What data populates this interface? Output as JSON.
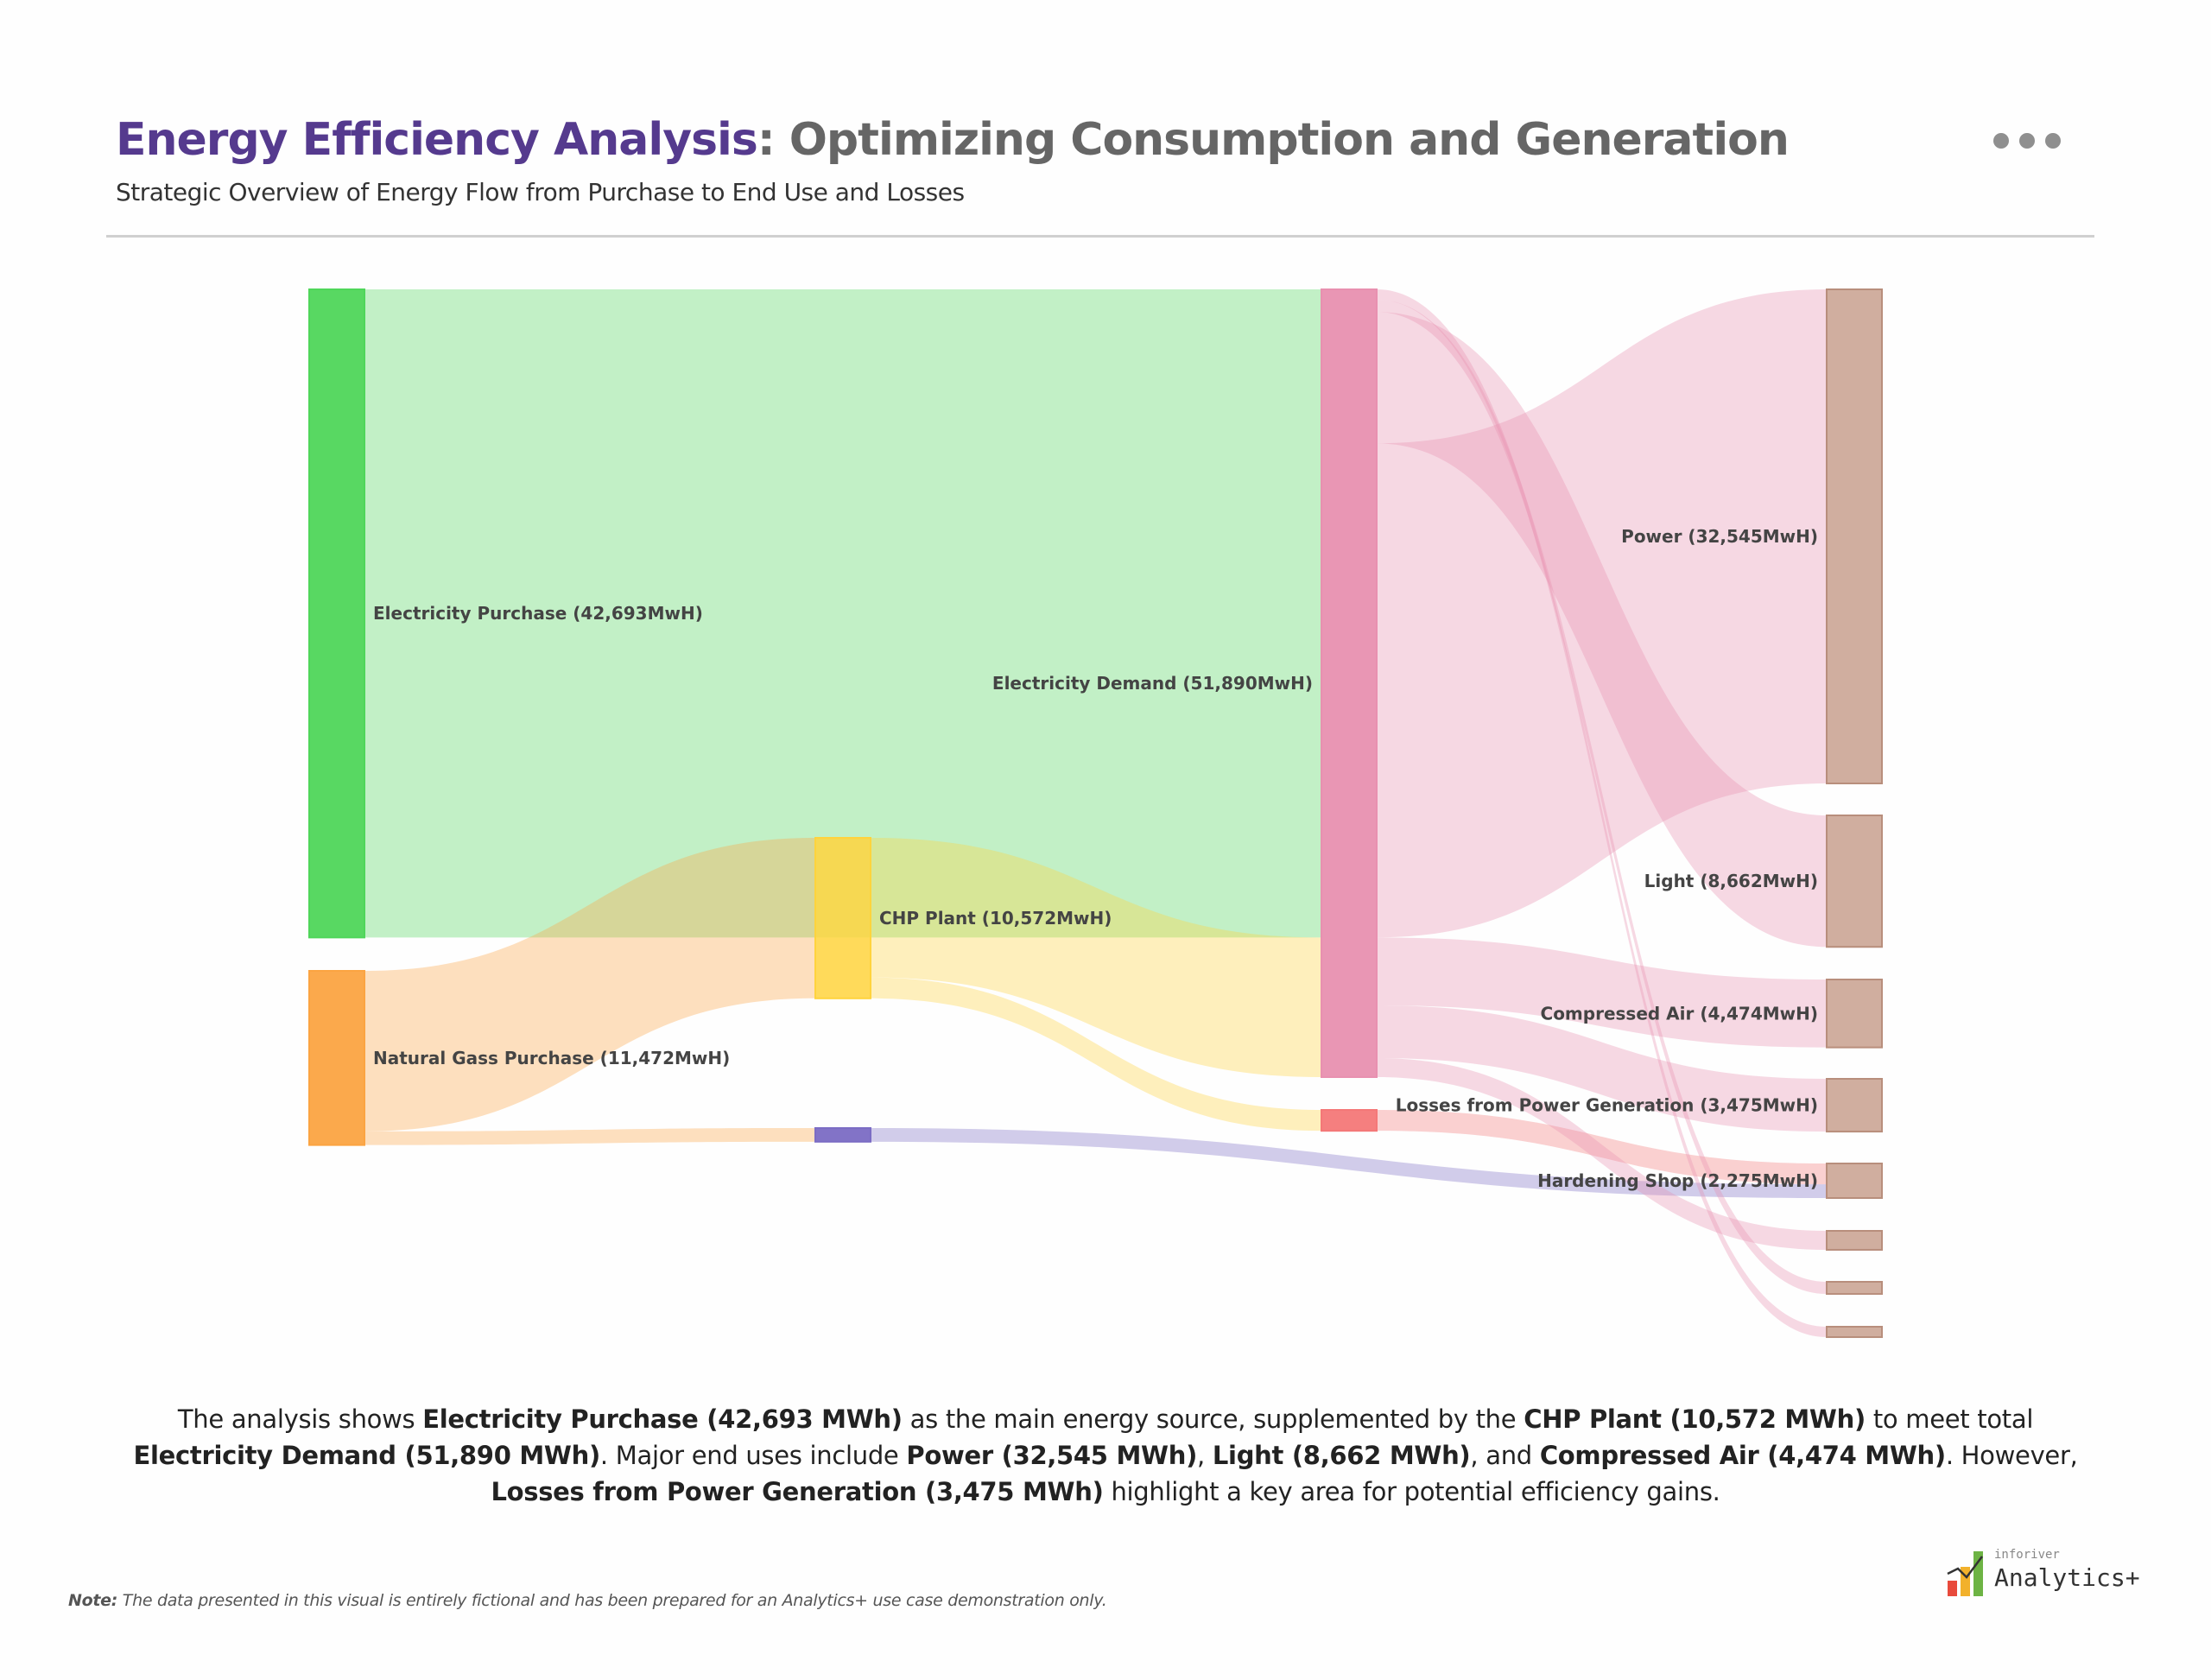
{
  "header": {
    "title_accent": "Energy Efficiency Analysis",
    "title_rest": ": Optimizing Consumption and Generation",
    "subtitle": "Strategic Overview of Energy Flow from Purchase to End Use and Losses",
    "more_icon": "more-horizontal-icon"
  },
  "chart_data": {
    "type": "sankey",
    "unit": "MWh",
    "nodes": [
      {
        "id": "elec_purchase",
        "label": "Electricity Purchase (42,693MwH)",
        "value": 42693,
        "column": 0,
        "color": "#4fd65a"
      },
      {
        "id": "gas_purchase",
        "label": "Natural Gass Purchase (11,472MwH)",
        "value": 11472,
        "column": 0,
        "color": "#fba442"
      },
      {
        "id": "chp",
        "label": "CHP Plant (10,572MwH)",
        "value": 10572,
        "column": 1,
        "color": "#ffd33d"
      },
      {
        "id": "unlabeled_purple",
        "label": "",
        "value": 900,
        "column": 1,
        "color": "#7b6cc4"
      },
      {
        "id": "elec_demand",
        "label": "Electricity Demand (51,890MwH)",
        "value": 51890,
        "column": 2,
        "color": "#e890b0"
      },
      {
        "id": "unlabeled_red",
        "label": "",
        "value": 1375,
        "column": 2,
        "color": "#f47878"
      },
      {
        "id": "power",
        "label": "Power (32,545MwH)",
        "value": 32545,
        "column": 3,
        "color": "#cdaa9a"
      },
      {
        "id": "light",
        "label": "Light (8,662MwH)",
        "value": 8662,
        "column": 3,
        "color": "#cdaa9a"
      },
      {
        "id": "compressed_air",
        "label": "Compressed Air (4,474MwH)",
        "value": 4474,
        "column": 3,
        "color": "#cdaa9a"
      },
      {
        "id": "losses",
        "label": "Losses from Power Generation (3,475MwH)",
        "value": 3475,
        "column": 3,
        "color": "#cdaa9a"
      },
      {
        "id": "hardening",
        "label": "Hardening Shop (2,275MwH)",
        "value": 2275,
        "column": 3,
        "color": "#cdaa9a"
      },
      {
        "id": "unlabeled_end_1",
        "label": "",
        "value": 1250,
        "column": 3,
        "color": "#cdaa9a"
      },
      {
        "id": "unlabeled_end_2",
        "label": "",
        "value": 800,
        "column": 3,
        "color": "#cdaa9a"
      },
      {
        "id": "unlabeled_end_3",
        "label": "",
        "value": 684,
        "column": 3,
        "color": "#cdaa9a"
      }
    ],
    "links": [
      {
        "source": "elec_purchase",
        "target": "elec_demand",
        "value": 42693
      },
      {
        "source": "gas_purchase",
        "target": "chp",
        "value": 10572
      },
      {
        "source": "gas_purchase",
        "target": "unlabeled_purple",
        "value": 900
      },
      {
        "source": "chp",
        "target": "elec_demand",
        "value": 9197
      },
      {
        "source": "chp",
        "target": "unlabeled_red",
        "value": 1375
      },
      {
        "source": "unlabeled_red",
        "target": "hardening",
        "value": 1375
      },
      {
        "source": "unlabeled_purple",
        "target": "hardening",
        "value": 900
      },
      {
        "source": "elec_demand",
        "target": "unlabeled_end_3",
        "value": 684
      },
      {
        "source": "elec_demand",
        "target": "unlabeled_end_2",
        "value": 800
      },
      {
        "source": "elec_demand",
        "target": "light",
        "value": 8662
      },
      {
        "source": "elec_demand",
        "target": "power",
        "value": 32545
      },
      {
        "source": "elec_demand",
        "target": "compressed_air",
        "value": 4474
      },
      {
        "source": "elec_demand",
        "target": "losses",
        "value": 3475
      },
      {
        "source": "elec_demand",
        "target": "unlabeled_end_1",
        "value": 1250
      }
    ]
  },
  "summary": {
    "segments": [
      {
        "text": "The analysis shows ",
        "bold": false
      },
      {
        "text": "Electricity Purchase (42,693 MWh)",
        "bold": true
      },
      {
        "text": " as the main energy source, supplemented by the ",
        "bold": false
      },
      {
        "text": "CHP Plant (10,572 MWh)",
        "bold": true
      },
      {
        "text": " to meet total ",
        "bold": false
      },
      {
        "text": "Electricity Demand (51,890 MWh)",
        "bold": true
      },
      {
        "text": ". Major end uses include ",
        "bold": false
      },
      {
        "text": "Power (32,545 MWh)",
        "bold": true
      },
      {
        "text": ", ",
        "bold": false
      },
      {
        "text": "Light (8,662 MWh)",
        "bold": true
      },
      {
        "text": ", and ",
        "bold": false
      },
      {
        "text": "Compressed Air (4,474 MWh)",
        "bold": true
      },
      {
        "text": ". However, ",
        "bold": false
      },
      {
        "text": "Losses from Power Generation (3,475 MWh)",
        "bold": true
      },
      {
        "text": " highlight a key area for potential efficiency gains.",
        "bold": false
      }
    ]
  },
  "footer": {
    "note_label": "Note:",
    "note_text": " The data presented in this visual is entirely fictional and has been prepared for an Analytics+ use case demonstration only.",
    "logo_small": "inforiver",
    "logo_big": "Analytics+"
  }
}
